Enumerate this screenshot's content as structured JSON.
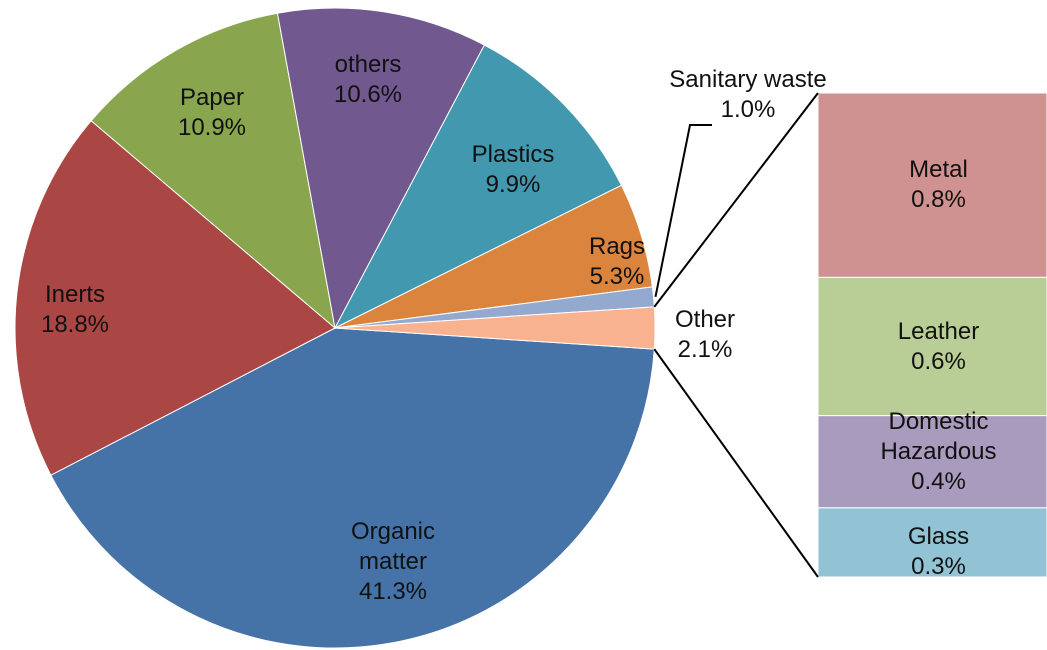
{
  "chart_data": {
    "type": "pie",
    "categories": [
      "Organic matter",
      "Inerts",
      "Paper",
      "others",
      "Plastics",
      "Rags",
      "Sanitary waste",
      "Other"
    ],
    "values": [
      41.3,
      18.8,
      10.9,
      10.6,
      9.9,
      5.3,
      1.0,
      2.1
    ],
    "value_labels": [
      "41.3%",
      "18.8%",
      "10.9%",
      "10.6%",
      "9.9%",
      "5.3%",
      "1.0%",
      "2.1%"
    ],
    "colors": [
      "#4572a7",
      "#aa4643",
      "#89a54e",
      "#71588f",
      "#4198af",
      "#db843d",
      "#93a9cf",
      "#f9b28f"
    ],
    "breakdown": {
      "categories": [
        "Metal",
        "Leather",
        "Domestic Hazardous",
        "Glass"
      ],
      "values": [
        0.8,
        0.6,
        0.4,
        0.3
      ],
      "value_labels": [
        "0.8%",
        "0.6%",
        "0.4%",
        "0.3%"
      ],
      "colors": [
        "#d09290",
        "#b9cd96",
        "#a99bbd",
        "#92c3d4"
      ]
    }
  }
}
